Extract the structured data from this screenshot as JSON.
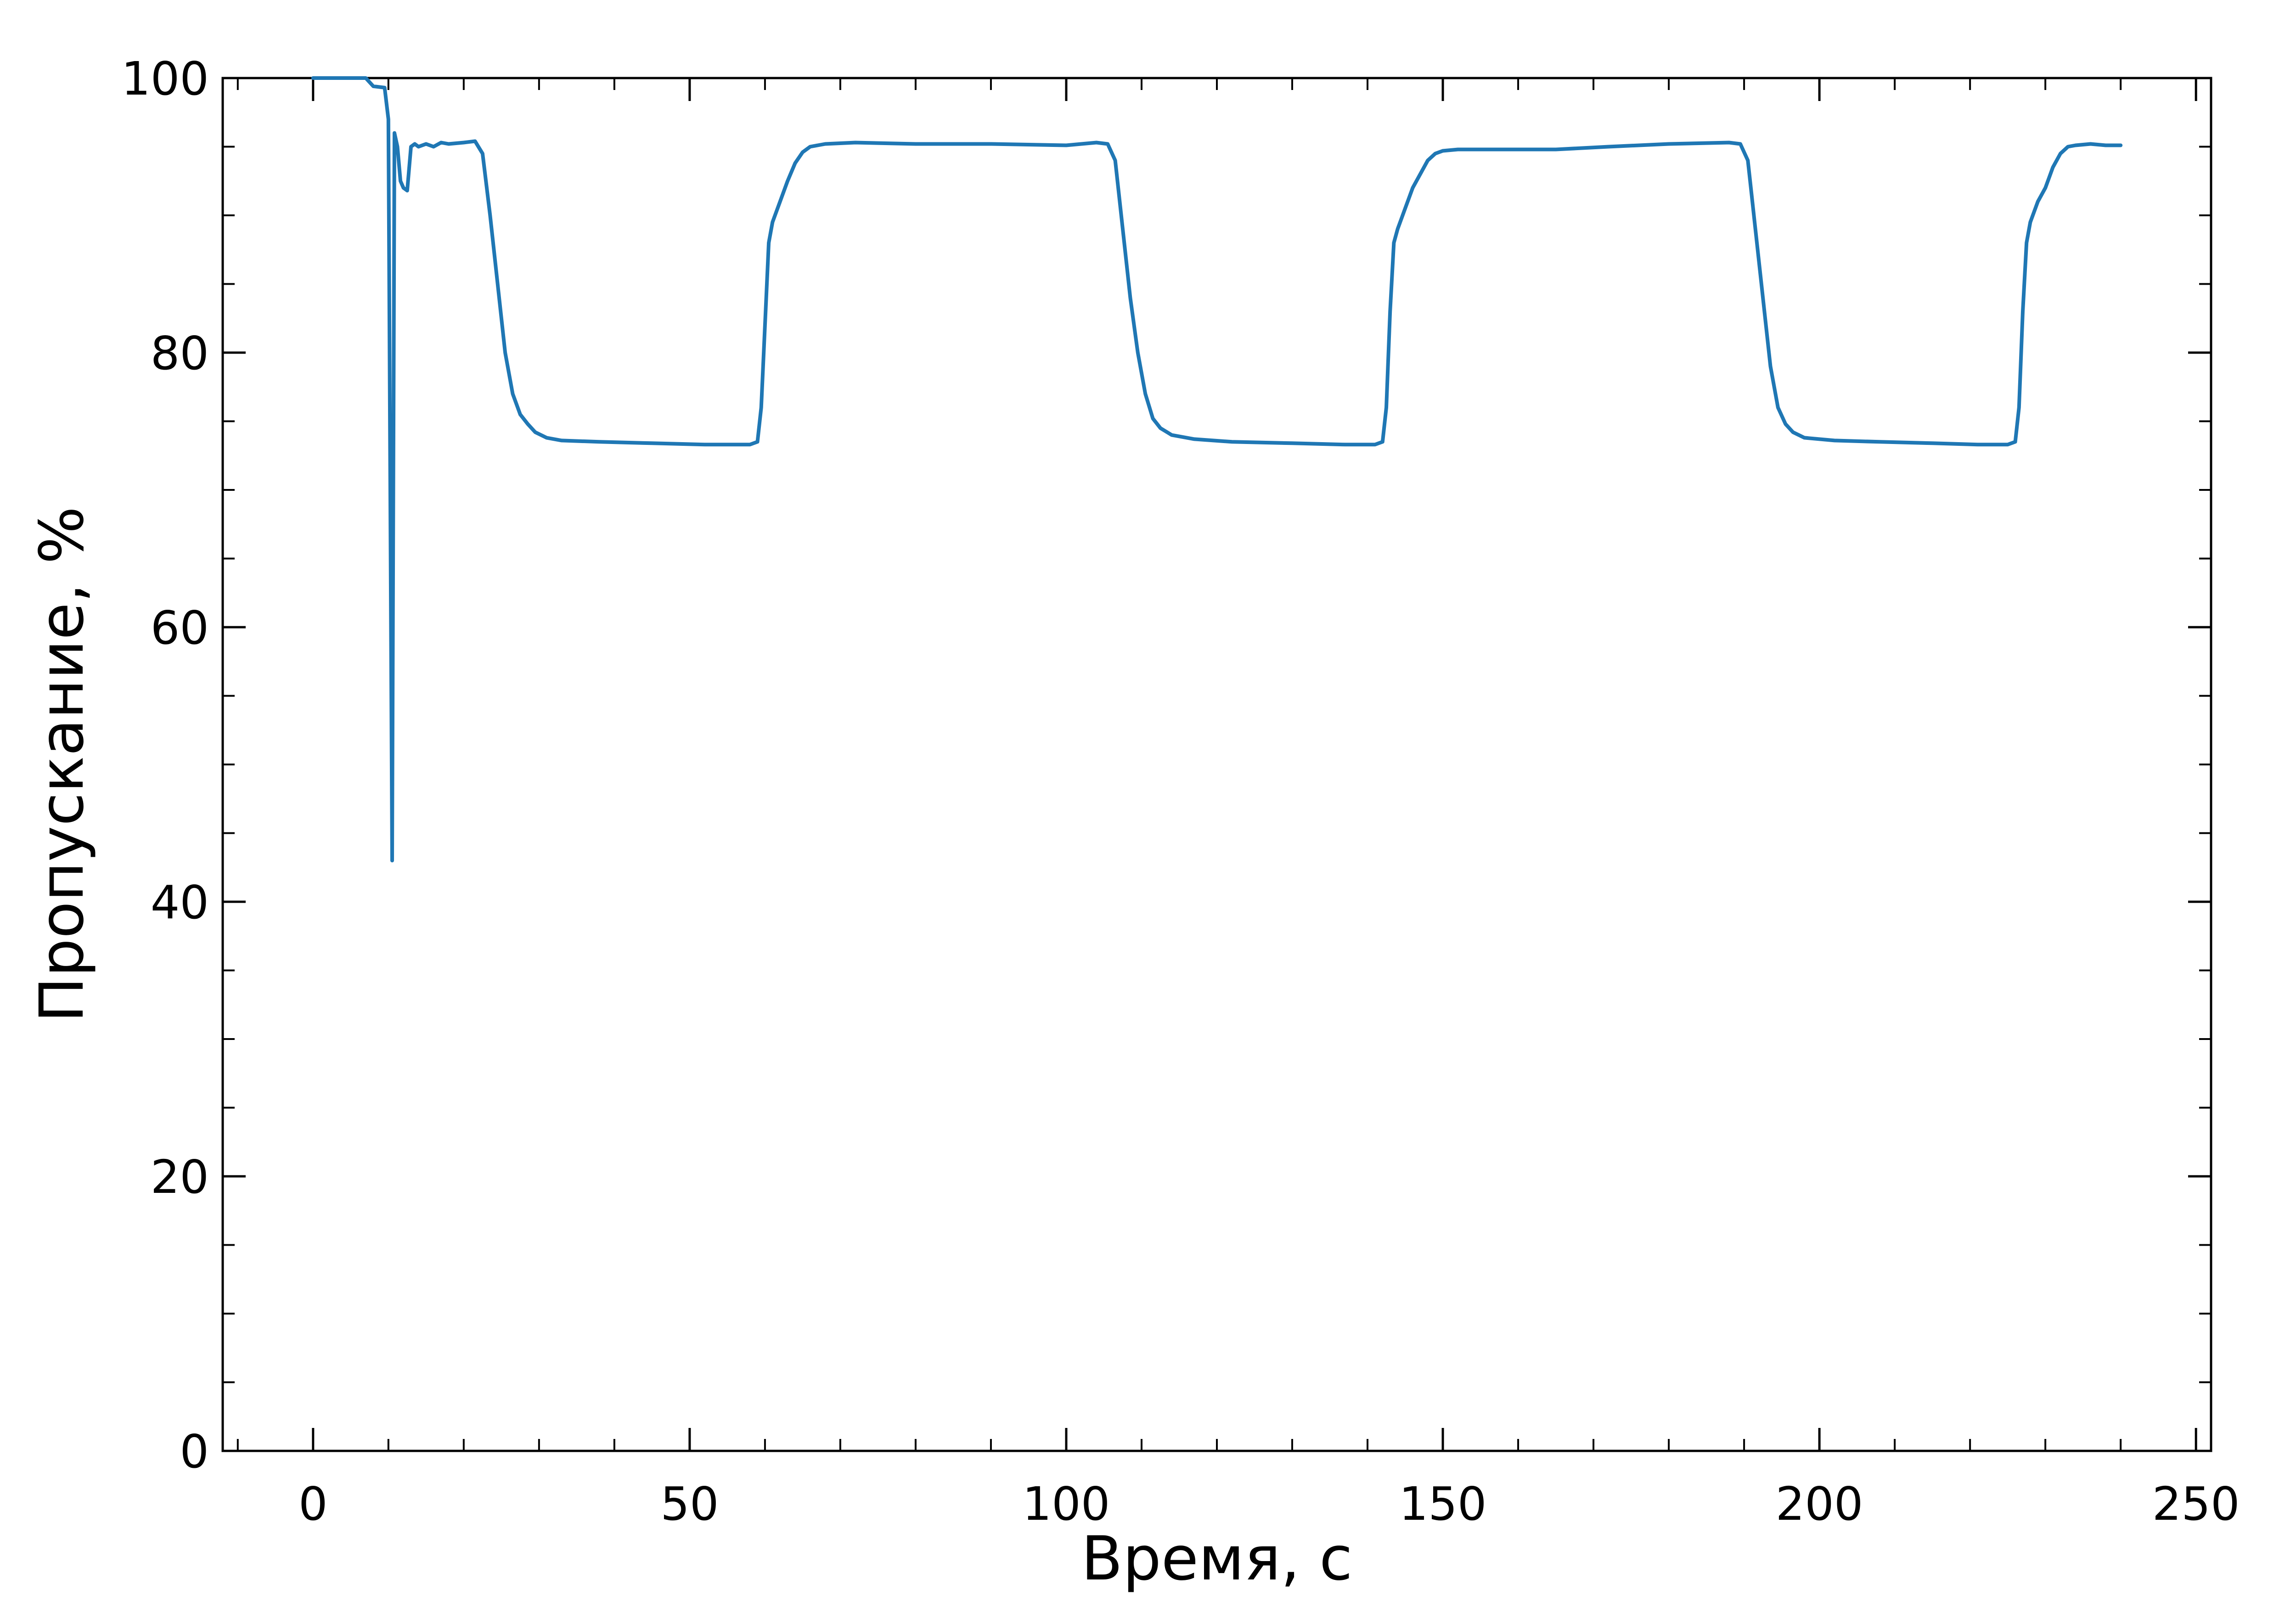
{
  "chart_data": {
    "type": "line",
    "title": "",
    "xlabel": "Время, с",
    "ylabel": "Пропускание, %",
    "xlim": [
      -12,
      252
    ],
    "ylim": [
      0,
      100
    ],
    "xticks": [
      0,
      50,
      100,
      150,
      200,
      250
    ],
    "yticks": [
      0,
      20,
      40,
      60,
      80,
      100
    ],
    "x_tick_labels": [
      "0",
      "50",
      "100",
      "150",
      "200",
      "250"
    ],
    "y_tick_labels": [
      "0",
      "20",
      "40",
      "60",
      "80",
      "100"
    ],
    "grid": false,
    "legend": "none",
    "line_color": "#1f77b4",
    "series": [
      {
        "x": [
          0,
          2,
          4,
          6,
          7,
          8,
          9.5,
          10,
          10.5,
          10.8,
          11.2,
          11.6,
          12,
          12.5,
          13,
          13.5,
          14,
          15,
          16,
          17,
          18,
          20,
          21.5,
          22.5,
          23.5,
          24.5,
          25.5,
          26.5,
          27.5,
          28.5,
          29.5,
          31,
          33,
          38,
          45,
          52,
          58,
          59,
          59.5,
          60,
          60.5,
          61,
          62,
          63,
          64,
          65,
          66,
          67,
          68,
          72,
          80,
          90,
          100,
          104,
          105.5,
          106.5,
          107.5,
          108.5,
          109.5,
          110.5,
          111.5,
          112.5,
          114,
          117,
          122,
          130,
          137,
          141,
          142,
          142.5,
          143,
          143.5,
          144,
          145,
          146,
          147,
          148,
          149,
          150,
          152,
          158,
          165,
          172,
          180,
          188,
          189.5,
          190.5,
          191.5,
          192.5,
          193.5,
          194.5,
          195.5,
          196.5,
          198,
          202,
          208,
          215,
          221,
          225,
          226,
          226.5,
          227,
          227.5,
          228,
          229,
          230,
          231,
          232,
          233,
          234,
          236,
          238,
          240
        ],
        "y": [
          100,
          100,
          100,
          100,
          100,
          99.4,
          99.3,
          97,
          43,
          96,
          95,
          92.5,
          92,
          91.8,
          95,
          95.2,
          95,
          95.2,
          95,
          95.3,
          95.2,
          95.3,
          95.4,
          94.5,
          90,
          85,
          80,
          77,
          75.5,
          74.8,
          74.2,
          73.8,
          73.6,
          73.5,
          73.4,
          73.3,
          73.3,
          73.5,
          76,
          82,
          88,
          89.5,
          91,
          92.5,
          93.8,
          94.6,
          95,
          95.1,
          95.2,
          95.3,
          95.2,
          95.2,
          95.1,
          95.3,
          95.2,
          94,
          89,
          84,
          80,
          77,
          75.2,
          74.5,
          74,
          73.7,
          73.5,
          73.4,
          73.3,
          73.3,
          73.5,
          76,
          83,
          88,
          89,
          90.5,
          92,
          93,
          94,
          94.5,
          94.7,
          94.8,
          94.8,
          94.8,
          95,
          95.2,
          95.3,
          95.2,
          94,
          89,
          84,
          79,
          76,
          74.8,
          74.2,
          73.8,
          73.6,
          73.5,
          73.4,
          73.3,
          73.3,
          73.5,
          76,
          83,
          88,
          89.5,
          91,
          92,
          93.5,
          94.5,
          95,
          95.1,
          95.2,
          95.1,
          95.1
        ]
      }
    ]
  }
}
